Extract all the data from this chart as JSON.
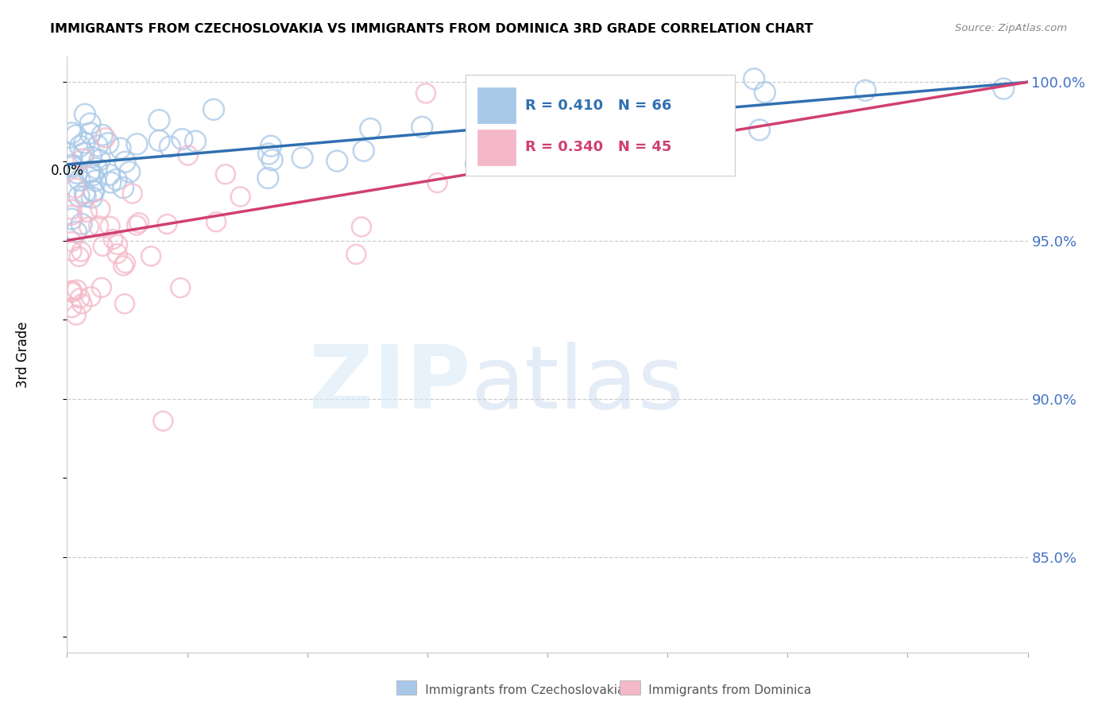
{
  "title": "IMMIGRANTS FROM CZECHOSLOVAKIA VS IMMIGRANTS FROM DOMINICA 3RD GRADE CORRELATION CHART",
  "source": "Source: ZipAtlas.com",
  "ylabel": "3rd Grade",
  "xmin": 0.0,
  "xmax": 0.2,
  "ymin": 0.82,
  "ymax": 1.008,
  "ytick_vals": [
    1.0,
    0.95,
    0.9,
    0.85
  ],
  "ytick_labels": [
    "100.0%",
    "95.0%",
    "90.0%",
    "85.0%"
  ],
  "legend_r_blue": "R = 0.410",
  "legend_n_blue": "N = 66",
  "legend_r_pink": "R = 0.340",
  "legend_n_pink": "N = 45",
  "color_blue": "#a8c8e8",
  "color_pink": "#f4b8c8",
  "color_trendline_blue": "#3070b0",
  "color_trendline_pink": "#d04070",
  "legend_label_blue": "Immigrants from Czechoslovakia",
  "legend_label_pink": "Immigrants from Dominica",
  "blue_trend_x0": 0.0,
  "blue_trend_y0": 0.974,
  "blue_trend_x1": 0.2,
  "blue_trend_y1": 1.0,
  "pink_trend_x0": 0.0,
  "pink_trend_y0": 0.95,
  "pink_trend_x1": 0.2,
  "pink_trend_y1": 1.0
}
